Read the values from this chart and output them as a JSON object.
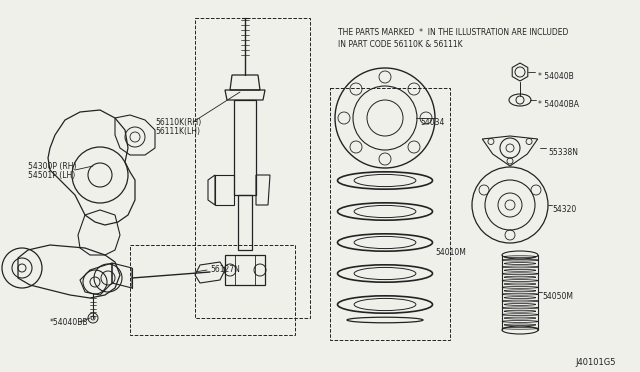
{
  "bg_color": "#f0f0eb",
  "line_color": "#222222",
  "fig_id": "J40101G5",
  "note_line1": "THE PARTS MARKED  *  IN THE ILLUSTRATION ARE INCLUDED",
  "note_line2": "IN PART CODE 56110K & 56111K",
  "figsize": [
    6.4,
    3.72
  ],
  "dpi": 100
}
